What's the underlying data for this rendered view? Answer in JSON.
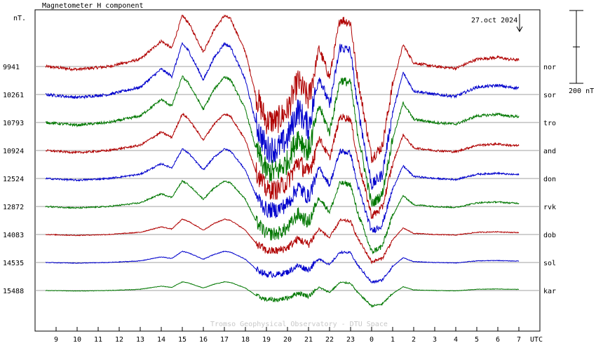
{
  "chart_data": {
    "type": "line",
    "title": "Magnetometer H component",
    "y_unit": "nT.",
    "date_label": "27.oct 2024",
    "x_unit": "UTC",
    "credit": "Tromso Geophysical Observatory - DTU Space",
    "scale_bar_label": "200 nT",
    "scale_bar_nT": 200,
    "x_ticks": [
      "9",
      "10",
      "11",
      "12",
      "13",
      "14",
      "15",
      "16",
      "17",
      "18",
      "19",
      "20",
      "21",
      "22",
      "23",
      "0",
      "1",
      "2",
      "3",
      "4",
      "5",
      "6",
      "7"
    ],
    "x_range_hours": [
      8,
      31
    ],
    "grid": "horizontal baselines per station",
    "colors": {
      "red": "#b00000",
      "blue": "#0000cc",
      "green": "#007700",
      "grid": "#a0a0a0",
      "axis": "#000000"
    },
    "series": [
      {
        "name": "nor",
        "baseline": "9941",
        "color": "red",
        "x": [
          8.5,
          10,
          11.5,
          13,
          14,
          14.5,
          15,
          15.3,
          16,
          16.5,
          17,
          17.3,
          18,
          18.5,
          19,
          19.5,
          20,
          20.5,
          21,
          21.5,
          22,
          22.5,
          23,
          23.3,
          24,
          24.5,
          25,
          25.5,
          26,
          27,
          28,
          29,
          30,
          30.5,
          31
        ],
        "y": [
          0,
          -8,
          0,
          20,
          70,
          50,
          140,
          120,
          40,
          100,
          140,
          130,
          40,
          -80,
          -150,
          -150,
          -120,
          -40,
          -90,
          50,
          -30,
          130,
          120,
          -20,
          -250,
          -220,
          -50,
          60,
          10,
          0,
          -5,
          20,
          25,
          20,
          18
        ]
      },
      {
        "name": "sor",
        "baseline": "10261",
        "color": "blue",
        "x": [
          8.5,
          10,
          11.5,
          13,
          14,
          14.5,
          15,
          15.3,
          16,
          16.5,
          17,
          17.3,
          18,
          18.5,
          19,
          19.5,
          20,
          20.5,
          21,
          21.5,
          22,
          22.5,
          23,
          23.3,
          24,
          24.5,
          25,
          25.5,
          26,
          27,
          28,
          29,
          30,
          30.5,
          31
        ],
        "y": [
          0,
          -8,
          0,
          20,
          70,
          50,
          140,
          120,
          40,
          100,
          140,
          130,
          40,
          -80,
          -150,
          -150,
          -120,
          -40,
          -90,
          50,
          -30,
          130,
          120,
          -20,
          -250,
          -220,
          -50,
          60,
          10,
          0,
          -5,
          20,
          25,
          20,
          18
        ]
      },
      {
        "name": "tro",
        "baseline": "10793",
        "color": "green",
        "x": [
          8.5,
          10,
          11.5,
          13,
          14,
          14.5,
          15,
          15.3,
          16,
          16.5,
          17,
          17.3,
          18,
          18.5,
          19,
          19.5,
          20,
          20.5,
          21,
          21.5,
          22,
          22.5,
          23,
          23.3,
          24,
          24.5,
          25,
          25.5,
          26,
          27,
          28,
          29,
          30,
          30.5,
          31
        ],
        "y": [
          0,
          -8,
          0,
          20,
          70,
          50,
          140,
          120,
          40,
          100,
          140,
          130,
          40,
          -80,
          -150,
          -150,
          -120,
          -40,
          -90,
          50,
          -30,
          130,
          120,
          -20,
          -250,
          -220,
          -50,
          60,
          10,
          0,
          -5,
          20,
          25,
          20,
          18
        ]
      },
      {
        "name": "and",
        "baseline": "10924",
        "color": "red",
        "x": [
          8.5,
          10,
          11.5,
          13,
          14,
          14.5,
          15,
          15.3,
          16,
          16.5,
          17,
          17.3,
          18,
          18.5,
          19,
          19.5,
          20,
          20.5,
          21,
          21.5,
          22,
          22.5,
          23,
          23.3,
          24,
          24.5,
          25,
          25.5,
          26,
          27,
          28,
          29,
          30,
          30.5,
          31
        ],
        "y": [
          0,
          -8,
          0,
          20,
          70,
          50,
          140,
          120,
          40,
          100,
          140,
          130,
          40,
          -80,
          -150,
          -150,
          -120,
          -40,
          -90,
          50,
          -30,
          130,
          120,
          -20,
          -250,
          -220,
          -50,
          60,
          10,
          0,
          -5,
          20,
          25,
          20,
          18
        ]
      },
      {
        "name": "don",
        "baseline": "12524",
        "color": "blue",
        "x": [
          8.5,
          10,
          11.5,
          13,
          14,
          14.5,
          15,
          15.3,
          16,
          16.5,
          17,
          17.3,
          18,
          18.5,
          19,
          19.5,
          20,
          20.5,
          21,
          21.5,
          22,
          22.5,
          23,
          23.3,
          24,
          24.5,
          25,
          25.5,
          26,
          27,
          28,
          29,
          30,
          30.5,
          31
        ],
        "y": [
          0,
          -8,
          0,
          20,
          70,
          50,
          140,
          120,
          40,
          100,
          140,
          130,
          40,
          -80,
          -150,
          -150,
          -120,
          -40,
          -90,
          50,
          -30,
          130,
          120,
          -20,
          -250,
          -220,
          -50,
          60,
          10,
          0,
          -5,
          20,
          25,
          20,
          18
        ]
      },
      {
        "name": "rvk",
        "baseline": "12872",
        "color": "green",
        "x": [
          8.5,
          10,
          11.5,
          13,
          14,
          14.5,
          15,
          15.3,
          16,
          16.5,
          17,
          17.3,
          18,
          18.5,
          19,
          19.5,
          20,
          20.5,
          21,
          21.5,
          22,
          22.5,
          23,
          23.3,
          24,
          24.5,
          25,
          25.5,
          26,
          27,
          28,
          29,
          30,
          30.5,
          31
        ],
        "y": [
          0,
          -8,
          0,
          20,
          70,
          50,
          140,
          120,
          40,
          100,
          140,
          130,
          40,
          -80,
          -150,
          -150,
          -120,
          -40,
          -90,
          50,
          -30,
          130,
          120,
          -20,
          -250,
          -220,
          -50,
          60,
          10,
          0,
          -5,
          20,
          25,
          20,
          18
        ]
      },
      {
        "name": "dob",
        "baseline": "14083",
        "color": "red",
        "x": [
          8.5,
          10,
          11.5,
          13,
          14,
          14.5,
          15,
          15.3,
          16,
          16.5,
          17,
          17.3,
          18,
          18.5,
          19,
          19.5,
          20,
          20.5,
          21,
          21.5,
          22,
          22.5,
          23,
          23.3,
          24,
          24.5,
          25,
          25.5,
          26,
          27,
          28,
          29,
          30,
          30.5,
          31
        ],
        "y": [
          0,
          -8,
          0,
          20,
          70,
          50,
          140,
          120,
          40,
          100,
          140,
          130,
          40,
          -80,
          -150,
          -150,
          -120,
          -40,
          -90,
          50,
          -30,
          130,
          120,
          -20,
          -250,
          -220,
          -50,
          60,
          10,
          0,
          -5,
          20,
          25,
          20,
          18
        ]
      },
      {
        "name": "sol",
        "baseline": "14535",
        "color": "blue",
        "x": [
          8.5,
          10,
          11.5,
          13,
          14,
          14.5,
          15,
          15.3,
          16,
          16.5,
          17,
          17.3,
          18,
          18.5,
          19,
          19.5,
          20,
          20.5,
          21,
          21.5,
          22,
          22.5,
          23,
          23.3,
          24,
          24.5,
          25,
          25.5,
          26,
          27,
          28,
          29,
          30,
          30.5,
          31
        ],
        "y": [
          0,
          -8,
          0,
          20,
          70,
          50,
          140,
          120,
          40,
          100,
          140,
          130,
          40,
          -80,
          -150,
          -150,
          -120,
          -40,
          -90,
          50,
          -30,
          130,
          120,
          -20,
          -250,
          -220,
          -50,
          60,
          10,
          0,
          -5,
          20,
          25,
          20,
          18
        ]
      },
      {
        "name": "kar",
        "baseline": "15488",
        "color": "green",
        "x": [
          8.5,
          10,
          11.5,
          13,
          14,
          14.5,
          15,
          15.3,
          16,
          16.5,
          17,
          17.3,
          18,
          18.5,
          19,
          19.5,
          20,
          20.5,
          21,
          21.5,
          22,
          22.5,
          23,
          23.3,
          24,
          24.5,
          25,
          25.5,
          26,
          27,
          28,
          29,
          30,
          30.5,
          31
        ],
        "y": [
          0,
          -8,
          0,
          20,
          70,
          50,
          140,
          120,
          40,
          100,
          140,
          130,
          40,
          -80,
          -150,
          -150,
          -120,
          -40,
          -90,
          50,
          -30,
          130,
          120,
          -20,
          -250,
          -220,
          -50,
          60,
          10,
          0,
          -5,
          20,
          25,
          20,
          18
        ]
      }
    ],
    "amplitudes": [
      1.0,
      1.0,
      0.9,
      0.72,
      0.58,
      0.5,
      0.3,
      0.22,
      0.17
    ]
  }
}
